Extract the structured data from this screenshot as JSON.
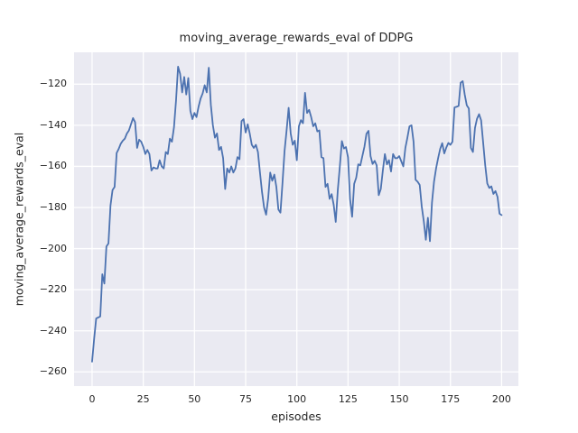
{
  "figure": {
    "background": "#ffffff",
    "axes_background": "#eaeaf2",
    "grid_color": "#ffffff",
    "text_color": "#262626",
    "line_color": "#4c72b0"
  },
  "chart_data": {
    "type": "line",
    "title": "moving_average_rewards_eval of DDPG",
    "xlabel": "episodes",
    "ylabel": "moving_average_rewards_eval",
    "grid": true,
    "legend_position": "none",
    "x_ticks": [
      0,
      25,
      50,
      75,
      100,
      125,
      150,
      175,
      200
    ],
    "y_ticks": [
      -120,
      -140,
      -160,
      -180,
      -200,
      -220,
      -240,
      -260
    ],
    "xlim": [
      -8.8,
      208.2
    ],
    "ylim": [
      -266.9,
      -104.5
    ],
    "series": [
      {
        "name": "moving_average_rewards_eval",
        "color": "#4c72b0",
        "x": [
          0,
          1,
          2,
          3,
          4,
          5,
          6,
          7,
          8,
          9,
          10,
          11,
          12,
          13,
          14,
          15,
          16,
          17,
          18,
          19,
          20,
          21,
          22,
          23,
          24,
          25,
          26,
          27,
          28,
          29,
          30,
          31,
          32,
          33,
          34,
          35,
          36,
          37,
          38,
          39,
          40,
          41,
          42,
          43,
          44,
          45,
          46,
          47,
          48,
          49,
          50,
          51,
          52,
          53,
          54,
          55,
          56,
          57,
          58,
          59,
          60,
          61,
          62,
          63,
          64,
          65,
          66,
          67,
          68,
          69,
          70,
          71,
          72,
          73,
          74,
          75,
          76,
          77,
          78,
          79,
          80,
          81,
          82,
          83,
          84,
          85,
          86,
          87,
          88,
          89,
          90,
          91,
          92,
          93,
          94,
          95,
          96,
          97,
          98,
          99,
          100,
          101,
          102,
          103,
          104,
          105,
          106,
          107,
          108,
          109,
          110,
          111,
          112,
          113,
          114,
          115,
          116,
          117,
          118,
          119,
          120,
          121,
          122,
          123,
          124,
          125,
          126,
          127,
          128,
          129,
          130,
          131,
          132,
          133,
          134,
          135,
          136,
          137,
          138,
          139,
          140,
          141,
          142,
          143,
          144,
          145,
          146,
          147,
          148,
          149,
          150,
          151,
          152,
          153,
          154,
          155,
          156,
          157,
          158,
          159,
          160,
          161,
          162,
          163,
          164,
          165,
          166,
          167,
          168,
          169,
          170,
          171,
          172,
          173,
          174,
          175,
          176,
          177,
          178,
          179,
          180,
          181,
          182,
          183,
          184,
          185,
          186,
          187,
          188,
          189,
          190,
          191,
          192,
          193,
          194,
          195,
          196,
          197,
          198,
          199,
          200
        ],
        "y": [
          -255,
          -244,
          -234,
          -233.5,
          -233,
          -212.5,
          -217,
          -199,
          -197.5,
          -179,
          -171.5,
          -170,
          -153.5,
          -151.5,
          -149,
          -147.5,
          -146.5,
          -144,
          -142.5,
          -139.5,
          -136.5,
          -138.5,
          -151,
          -147,
          -148,
          -150.5,
          -154,
          -152,
          -154,
          -162,
          -160.5,
          -161,
          -161,
          -157,
          -160,
          -161,
          -153,
          -154,
          -146.5,
          -148,
          -141,
          -128,
          -111.5,
          -115,
          -124,
          -116.5,
          -125,
          -117,
          -133,
          -137,
          -134,
          -136,
          -131,
          -127,
          -124.5,
          -120.5,
          -124,
          -112,
          -130,
          -140,
          -146,
          -144,
          -152,
          -150.5,
          -156,
          -171,
          -161,
          -163,
          -160,
          -163,
          -161,
          -155.5,
          -156.5,
          -138,
          -137,
          -143.5,
          -139.5,
          -144,
          -149.5,
          -151,
          -149.5,
          -153,
          -163,
          -172.5,
          -180,
          -183.5,
          -175.5,
          -163,
          -167,
          -164,
          -170,
          -181,
          -182.5,
          -168,
          -152.5,
          -142.5,
          -131.5,
          -144,
          -149.5,
          -147.5,
          -157,
          -140.5,
          -137.5,
          -139,
          -124.2,
          -134,
          -132.5,
          -136,
          -140.5,
          -139,
          -143,
          -142.5,
          -155.5,
          -156,
          -170,
          -168.5,
          -175.8,
          -173.5,
          -178.7,
          -187,
          -171.5,
          -160,
          -147.7,
          -151.3,
          -150.6,
          -155.6,
          -176,
          -184.5,
          -168.5,
          -165.5,
          -159,
          -159.5,
          -155,
          -150.5,
          -144.1,
          -142.7,
          -155,
          -158.8,
          -157.3,
          -159.5,
          -174,
          -171,
          -162,
          -154,
          -159,
          -157,
          -162.5,
          -154,
          -156,
          -156,
          -155,
          -157.5,
          -160,
          -151,
          -146,
          -140.5,
          -140,
          -148,
          -166.5,
          -167.5,
          -169,
          -179.5,
          -186.7,
          -195.7,
          -185,
          -196.4,
          -177.6,
          -167.4,
          -161,
          -156,
          -151.5,
          -148.7,
          -153.7,
          -150.8,
          -148.6,
          -149.5,
          -148,
          -131.3,
          -131,
          -130.6,
          -119.3,
          -118.5,
          -125.1,
          -130.3,
          -131.8,
          -151,
          -153,
          -141.3,
          -136.8,
          -134.6,
          -137.6,
          -148.5,
          -159.5,
          -168.3,
          -170.5,
          -169.7,
          -173.4,
          -172,
          -174.8,
          -183,
          -183.7
        ]
      }
    ]
  }
}
